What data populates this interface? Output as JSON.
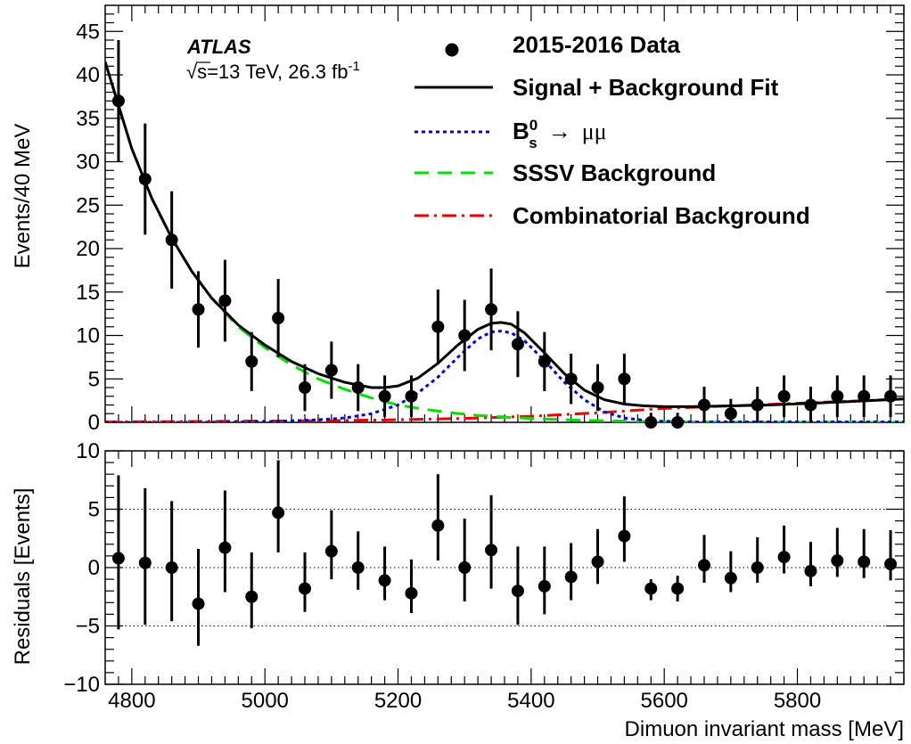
{
  "chart_data": [
    {
      "type": "scatter",
      "panel": "main",
      "ylabel": "Events/40 MeV",
      "xlim": [
        4760,
        5960
      ],
      "ylim": [
        0,
        48
      ],
      "x_ticks": [
        4800,
        5000,
        5200,
        5400,
        5600,
        5800
      ],
      "x_tick_labels": [
        "4800",
        "5000",
        "5200",
        "5400",
        "5600",
        "5800"
      ],
      "y_ticks": [
        0,
        5,
        10,
        15,
        20,
        25,
        30,
        35,
        40,
        45
      ],
      "y_tick_labels": [
        "0",
        "5",
        "10",
        "15",
        "20",
        "25",
        "30",
        "35",
        "40",
        "45"
      ],
      "experiment_label": "ATLAS",
      "energy_label": {
        "sqrt_symbol": "√",
        "text": "s=13 TeV, 26.3 fb",
        "superscript": "-1"
      },
      "legend": [
        {
          "label": "2015-2016 Data",
          "style": "marker",
          "color": "#000000"
        },
        {
          "label": "Signal + Background Fit",
          "style": "solid",
          "color": "#000000"
        },
        {
          "label": "B",
          "superscript": "0",
          "subscript": "s",
          "arrow": "→",
          "greek": "μμ",
          "style": "dotted",
          "color": "#0000cc"
        },
        {
          "label": "SSSV Background",
          "style": "dashed",
          "color": "#00dd00"
        },
        {
          "label": "Combinatorial Background",
          "style": "dashdot",
          "color": "#ee0000"
        }
      ],
      "legend_position": "top-right",
      "series": [
        {
          "name": "2015-2016 Data",
          "x": [
            4780,
            4820,
            4860,
            4900,
            4940,
            4980,
            5020,
            5060,
            5100,
            5140,
            5180,
            5220,
            5260,
            5300,
            5340,
            5380,
            5420,
            5460,
            5500,
            5540,
            5580,
            5620,
            5660,
            5700,
            5740,
            5780,
            5820,
            5860,
            5900,
            5940
          ],
          "y": [
            37,
            28,
            21,
            13,
            14,
            7,
            12,
            4,
            6,
            4,
            3,
            3,
            11,
            10,
            13,
            9,
            7,
            5,
            4,
            5,
            0,
            0,
            2,
            1,
            2,
            3,
            2,
            3,
            3,
            3
          ],
          "yerr": [
            7,
            6.4,
            5.6,
            4.4,
            4.7,
            3.4,
            4.5,
            2.7,
            3.3,
            2.7,
            2.4,
            2.4,
            4.3,
            4.1,
            4.7,
            3.8,
            3.4,
            2.9,
            2.7,
            2.9,
            1.1,
            1.1,
            2.1,
            1.7,
            2.1,
            2.4,
            2.1,
            2.4,
            2.4,
            2.4
          ]
        },
        {
          "name": "Signal + Background Fit",
          "x": [
            4760,
            4780,
            4800,
            4830,
            4860,
            4890,
            4920,
            4960,
            5000,
            5040,
            5080,
            5120,
            5160,
            5180,
            5200,
            5230,
            5260,
            5290,
            5320,
            5340,
            5355,
            5370,
            5390,
            5420,
            5450,
            5480,
            5510,
            5540,
            5570,
            5600,
            5640,
            5700,
            5760,
            5820,
            5880,
            5960
          ],
          "y": [
            41.5,
            36.5,
            31.5,
            25.8,
            21.2,
            17.4,
            14.3,
            11.2,
            8.9,
            7.0,
            5.6,
            4.6,
            4.0,
            4.0,
            4.2,
            5.1,
            6.8,
            8.9,
            10.7,
            11.4,
            11.5,
            11.3,
            10.3,
            8.0,
            5.6,
            3.7,
            2.6,
            2.1,
            1.9,
            1.8,
            1.8,
            1.9,
            2.0,
            2.2,
            2.4,
            2.7
          ]
        },
        {
          "name": "B_s^0 → μμ",
          "x": [
            4760,
            4900,
            5000,
            5080,
            5120,
            5160,
            5200,
            5230,
            5260,
            5290,
            5320,
            5340,
            5355,
            5370,
            5390,
            5420,
            5450,
            5480,
            5510,
            5540,
            5580,
            5640,
            5960
          ],
          "y": [
            0,
            0,
            0.05,
            0.3,
            0.5,
            1.0,
            2.0,
            3.4,
            5.2,
            7.5,
            9.6,
            10.4,
            10.5,
            10.3,
            9.4,
            7.1,
            4.6,
            2.6,
            1.2,
            0.5,
            0.15,
            0.05,
            0.05
          ]
        },
        {
          "name": "SSSV Background",
          "x": [
            4760,
            4780,
            4800,
            4830,
            4860,
            4890,
            4920,
            4960,
            5000,
            5040,
            5080,
            5120,
            5160,
            5200,
            5240,
            5280,
            5320,
            5360,
            5400,
            5450,
            5500,
            5560,
            5620,
            5700,
            5800,
            5960
          ],
          "y": [
            41.5,
            36.5,
            31.5,
            25.8,
            21.2,
            17.4,
            14.3,
            11.0,
            8.6,
            6.6,
            5.0,
            3.8,
            2.8,
            2.0,
            1.5,
            1.1,
            0.8,
            0.6,
            0.45,
            0.3,
            0.2,
            0.1,
            0.05,
            0.02,
            0.01,
            0
          ]
        },
        {
          "name": "Combinatorial Background",
          "x": [
            4760,
            4900,
            5000,
            5100,
            5200,
            5300,
            5400,
            5500,
            5600,
            5700,
            5800,
            5900,
            5960
          ],
          "y": [
            0.05,
            0.1,
            0.15,
            0.2,
            0.3,
            0.45,
            0.7,
            1.1,
            1.6,
            1.9,
            2.2,
            2.5,
            2.7
          ]
        }
      ]
    },
    {
      "type": "scatter",
      "panel": "residuals",
      "xlabel": "Dimuon invariant mass [MeV]",
      "ylabel": "Residuals [Events]",
      "xlim": [
        4760,
        5960
      ],
      "ylim": [
        -10,
        10
      ],
      "y_ticks": [
        -10,
        -5,
        0,
        5,
        10
      ],
      "y_tick_labels": [
        "−10",
        "−5",
        "0",
        "5",
        "10"
      ],
      "x_ticks": [
        4800,
        5000,
        5200,
        5400,
        5600,
        5800
      ],
      "x_tick_labels": [
        "4800",
        "5000",
        "5200",
        "5400",
        "5600",
        "5800"
      ],
      "reference_lines": [
        -5,
        0,
        5
      ],
      "series": [
        {
          "name": "Residuals",
          "x": [
            4780,
            4820,
            4860,
            4900,
            4940,
            4980,
            5020,
            5060,
            5100,
            5140,
            5180,
            5220,
            5260,
            5300,
            5340,
            5380,
            5420,
            5460,
            5500,
            5540,
            5580,
            5620,
            5660,
            5700,
            5740,
            5780,
            5820,
            5860,
            5900,
            5940
          ],
          "y": [
            0.8,
            0.4,
            0.0,
            -3.1,
            1.7,
            -2.5,
            4.7,
            -1.8,
            1.4,
            0.0,
            -1.1,
            -2.2,
            3.6,
            0.0,
            1.5,
            -2.0,
            -1.6,
            -0.8,
            0.5,
            2.7,
            -1.8,
            -1.8,
            0.2,
            -0.9,
            0.0,
            0.9,
            -0.3,
            0.6,
            0.5,
            0.3
          ],
          "yerr_low": [
            6.1,
            5.3,
            4.6,
            3.6,
            3.8,
            2.7,
            3.4,
            2.0,
            2.4,
            1.9,
            1.7,
            1.7,
            3.0,
            2.9,
            3.3,
            2.9,
            2.4,
            2.0,
            1.9,
            2.2,
            1.0,
            1.1,
            1.5,
            1.2,
            1.3,
            1.4,
            1.3,
            1.4,
            1.4,
            1.4
          ],
          "yerr_high": [
            7.1,
            6.4,
            5.7,
            4.7,
            4.9,
            3.8,
            4.5,
            3.1,
            3.5,
            3.1,
            2.9,
            2.9,
            4.4,
            4.2,
            4.7,
            3.8,
            3.4,
            2.9,
            2.8,
            3.4,
            0.8,
            1.1,
            2.6,
            2.3,
            2.6,
            2.7,
            2.5,
            2.8,
            2.8,
            2.9
          ]
        }
      ]
    }
  ]
}
